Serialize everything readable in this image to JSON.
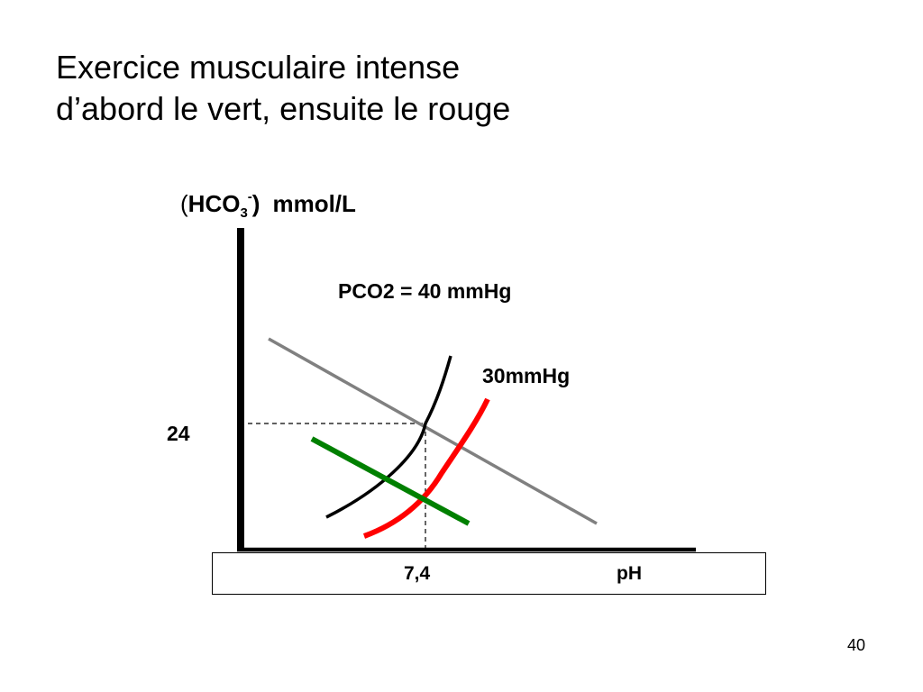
{
  "title": {
    "line1": "Exercice musculaire intense",
    "line2": "d’abord le vert, ensuite le rouge"
  },
  "diagram": {
    "y_axis": {
      "open_paren": "(",
      "species": "HCO",
      "subscript": "3",
      "superscript": "-",
      "close_paren": ")",
      "unit": "mmol/L"
    },
    "x_axis": {
      "label": "pH"
    },
    "ticks": {
      "y_value": "24",
      "x_value": "7,4"
    },
    "labels": {
      "pco2_40": "PCO2 = 40 mmHg",
      "pco2_30": "30mmHg"
    },
    "colors": {
      "axis": "#000000",
      "buffer_line": "#808080",
      "isobar_40": "#000000",
      "isobar_30": "#ff0000",
      "green_line": "#008000",
      "guides": "#000000"
    }
  },
  "page_number": "40"
}
